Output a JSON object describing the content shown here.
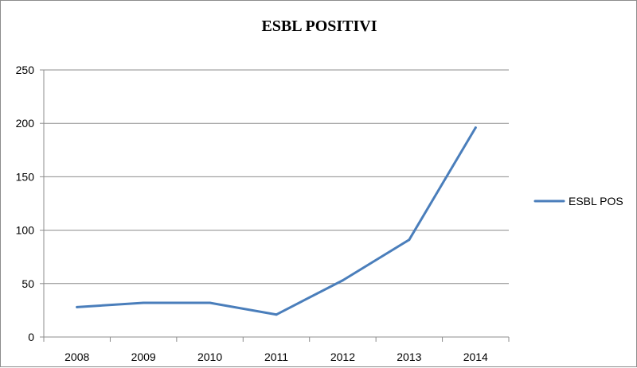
{
  "chart_data": {
    "type": "line",
    "title": "ESBL POSITIVI",
    "xlabel": "",
    "ylabel": "",
    "categories": [
      "2008",
      "2009",
      "2010",
      "2011",
      "2012",
      "2013",
      "2014"
    ],
    "series": [
      {
        "name": "ESBL POS",
        "values": [
          28,
          32,
          32,
          21,
          53,
          91,
          196
        ]
      }
    ],
    "ylim": [
      0,
      250
    ],
    "yticks": [
      0,
      50,
      100,
      150,
      200,
      250
    ],
    "grid": "horizontal",
    "legend_position": "right",
    "colors": {
      "series": "#4a7ebb",
      "grid": "#8c8c8c",
      "axis": "#8c8c8c"
    }
  }
}
